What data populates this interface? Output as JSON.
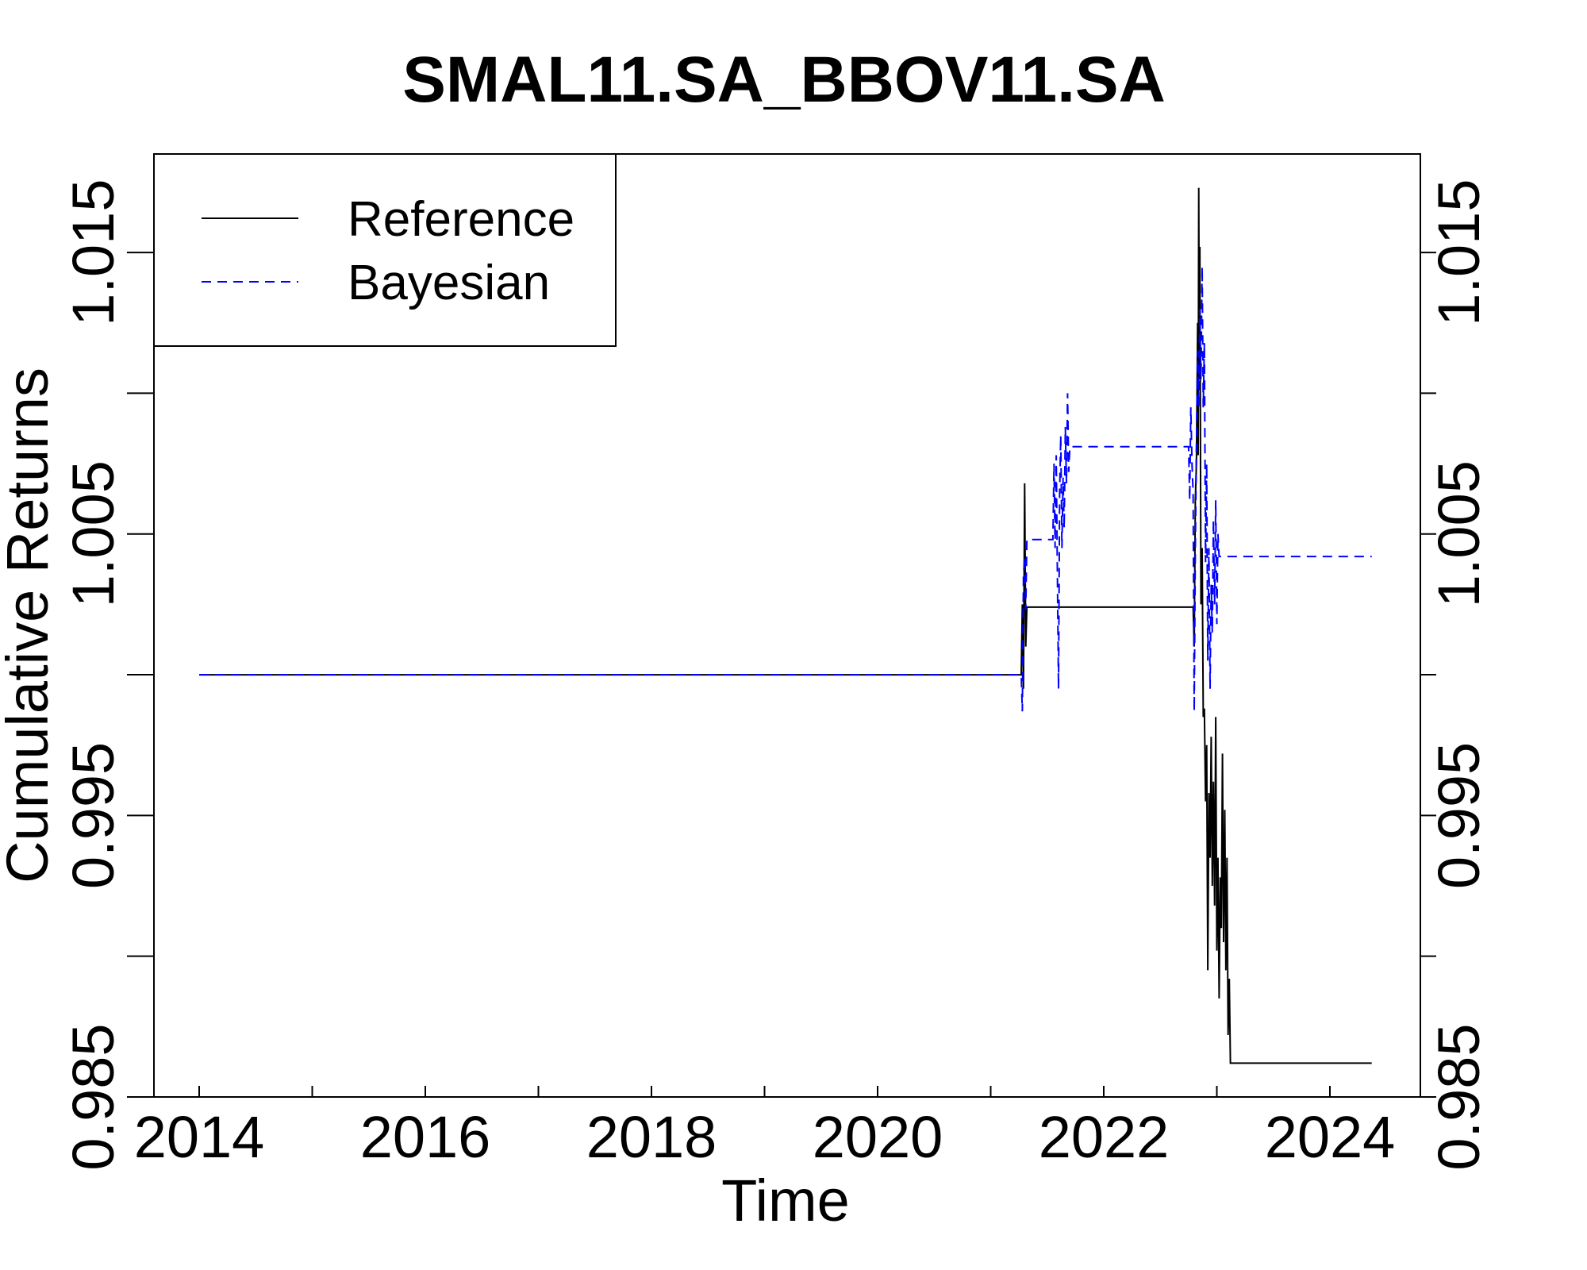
{
  "chart_data": {
    "type": "line",
    "title": "SMAL11.SA_BBOV11.SA",
    "xlabel": "Time",
    "ylabel": "Cumulative Returns",
    "xlim": [
      2013.6,
      2024.8
    ],
    "ylim": [
      0.985,
      1.0185
    ],
    "x_ticks": [
      2014,
      2016,
      2018,
      2020,
      2022,
      2024
    ],
    "x_minor_ticks": [
      2015,
      2017,
      2019,
      2021,
      2023
    ],
    "x_tick_labels": [
      "2014",
      "2016",
      "2018",
      "2020",
      "2022",
      "2024"
    ],
    "y_ticks": [
      0.985,
      0.99,
      0.995,
      1.0,
      1.005,
      1.01,
      1.015
    ],
    "y_labeled_ticks": [
      0.985,
      0.995,
      1.005,
      1.015
    ],
    "y_tick_labels": [
      "0.985",
      "0.995",
      "1.005",
      "1.015"
    ],
    "legend_position": "top-left",
    "series": [
      {
        "name": "Reference",
        "color": "#000000",
        "style": "solid",
        "points": [
          [
            2014.0,
            1.0
          ],
          [
            2021.27,
            1.0
          ],
          [
            2021.28,
            1.0025
          ],
          [
            2021.29,
            0.9995
          ],
          [
            2021.3,
            1.0068
          ],
          [
            2021.31,
            1.001
          ],
          [
            2021.32,
            1.0024
          ],
          [
            2022.79,
            1.0024
          ],
          [
            2022.8,
            1.001
          ],
          [
            2022.81,
            1.0062
          ],
          [
            2022.82,
            1.0075
          ],
          [
            2022.83,
            1.0125
          ],
          [
            2022.835,
            1.0078
          ],
          [
            2022.84,
            1.0173
          ],
          [
            2022.845,
            1.0105
          ],
          [
            2022.85,
            1.0152
          ],
          [
            2022.86,
            1.0025
          ],
          [
            2022.87,
            1.0045
          ],
          [
            2022.88,
            0.9985
          ],
          [
            2022.89,
            0.9988
          ],
          [
            2022.9,
            0.9955
          ],
          [
            2022.91,
            0.9975
          ],
          [
            2022.92,
            0.9895
          ],
          [
            2022.93,
            0.9958
          ],
          [
            2022.94,
            0.9935
          ],
          [
            2022.95,
            0.9978
          ],
          [
            2022.96,
            0.9925
          ],
          [
            2022.97,
            0.9962
          ],
          [
            2022.98,
            0.9918
          ],
          [
            2022.99,
            0.9985
          ],
          [
            2023.0,
            0.9902
          ],
          [
            2023.01,
            0.9935
          ],
          [
            2023.02,
            0.9885
          ],
          [
            2023.03,
            0.9928
          ],
          [
            2023.04,
            0.991
          ],
          [
            2023.05,
            0.9972
          ],
          [
            2023.06,
            0.9905
          ],
          [
            2023.07,
            0.9952
          ],
          [
            2023.08,
            0.9895
          ],
          [
            2023.09,
            0.9935
          ],
          [
            2023.1,
            0.9872
          ],
          [
            2023.11,
            0.9892
          ],
          [
            2023.12,
            0.9862
          ],
          [
            2024.37,
            0.9862
          ]
        ]
      },
      {
        "name": "Bayesian",
        "color": "#0000ff",
        "style": "dashed",
        "points": [
          [
            2014.0,
            1.0
          ],
          [
            2021.27,
            1.0
          ],
          [
            2021.28,
            0.9987
          ],
          [
            2021.29,
            1.0035
          ],
          [
            2021.3,
            1.0042
          ],
          [
            2021.31,
            1.0023
          ],
          [
            2021.32,
            1.0048
          ],
          [
            2021.55,
            1.0048
          ],
          [
            2021.56,
            1.0075
          ],
          [
            2021.57,
            1.0045
          ],
          [
            2021.58,
            1.0078
          ],
          [
            2021.6,
            0.9995
          ],
          [
            2021.61,
            1.0065
          ],
          [
            2021.62,
            1.0085
          ],
          [
            2021.63,
            1.0045
          ],
          [
            2021.64,
            1.007
          ],
          [
            2021.65,
            1.0052
          ],
          [
            2021.66,
            1.0088
          ],
          [
            2021.67,
            1.0068
          ],
          [
            2021.68,
            1.01
          ],
          [
            2021.69,
            1.0072
          ],
          [
            2021.7,
            1.0081
          ],
          [
            2022.75,
            1.0081
          ],
          [
            2022.76,
            1.0062
          ],
          [
            2022.77,
            1.0095
          ],
          [
            2022.78,
            1.0075
          ],
          [
            2022.79,
            1.0065
          ],
          [
            2022.8,
            0.9987
          ],
          [
            2022.81,
            1.0045
          ],
          [
            2022.82,
            1.0082
          ],
          [
            2022.83,
            1.0115
          ],
          [
            2022.84,
            1.0095
          ],
          [
            2022.85,
            1.013
          ],
          [
            2022.86,
            1.0105
          ],
          [
            2022.87,
            1.0145
          ],
          [
            2022.88,
            1.0095
          ],
          [
            2022.89,
            1.0118
          ],
          [
            2022.9,
            1.004
          ],
          [
            2022.91,
            1.0075
          ],
          [
            2022.92,
            1.0005
          ],
          [
            2022.93,
            1.0045
          ],
          [
            2022.94,
            0.9995
          ],
          [
            2022.95,
            1.0032
          ],
          [
            2022.96,
            1.0015
          ],
          [
            2022.97,
            1.0055
          ],
          [
            2022.98,
            1.0025
          ],
          [
            2022.99,
            1.0062
          ],
          [
            2023.0,
            1.0018
          ],
          [
            2023.01,
            1.005
          ],
          [
            2023.02,
            1.0042
          ],
          [
            2023.03,
            1.0042
          ],
          [
            2024.37,
            1.0042
          ]
        ]
      }
    ]
  }
}
